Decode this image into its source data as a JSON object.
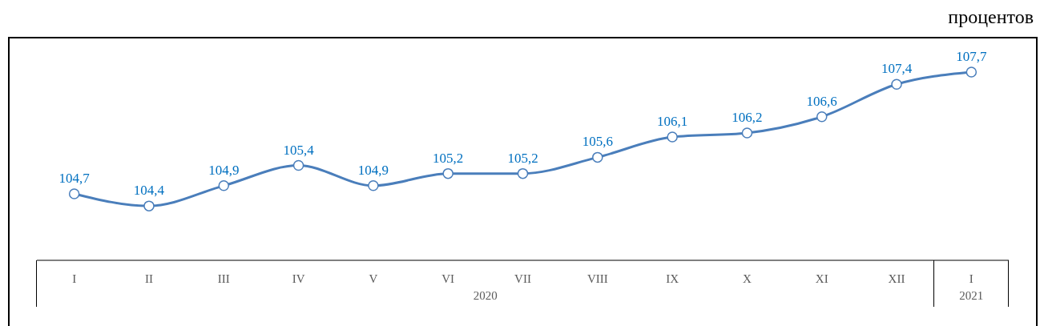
{
  "chart_data": {
    "type": "line",
    "subtitle": "процентов",
    "categories": [
      "I",
      "II",
      "III",
      "IV",
      "V",
      "VI",
      "VII",
      "VIII",
      "IX",
      "X",
      "XI",
      "XII",
      "I"
    ],
    "series": [
      {
        "color": "#4a7ebb",
        "values": [
          104.7,
          104.4,
          104.9,
          105.4,
          104.9,
          105.2,
          105.2,
          105.6,
          106.1,
          106.2,
          106.6,
          107.4,
          107.7
        ],
        "value_labels": [
          "104,7",
          "104,4",
          "104,9",
          "105,4",
          "104,9",
          "105,2",
          "105,2",
          "105,6",
          "106,1",
          "106,2",
          "106,6",
          "107,4",
          "107,7"
        ]
      }
    ],
    "annotations": [
      "2020",
      "2021"
    ],
    "marker": "circle",
    "line_style": "solid",
    "grid": false,
    "legend": false
  }
}
